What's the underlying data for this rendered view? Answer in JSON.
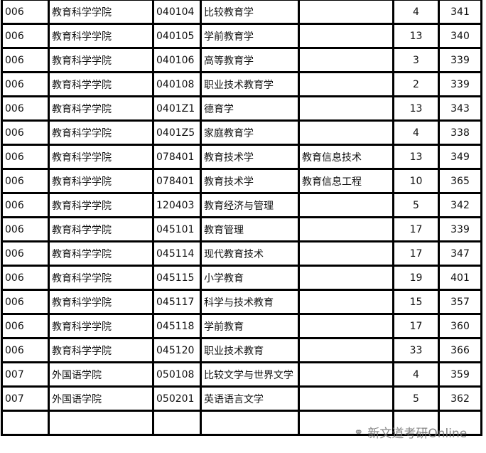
{
  "rows": [
    [
      "006",
      "教育科学学院",
      "040104",
      "比较教育学",
      "",
      "4",
      "341"
    ],
    [
      "006",
      "教育科学学院",
      "040105",
      "学前教育学",
      "",
      "13",
      "340"
    ],
    [
      "006",
      "教育科学学院",
      "040106",
      "高等教育学",
      "",
      "3",
      "339"
    ],
    [
      "006",
      "教育科学学院",
      "040108",
      "职业技术教育学",
      "",
      "2",
      "339"
    ],
    [
      "006",
      "教育科学学院",
      "0401Z1",
      "德育学",
      "",
      "13",
      "343"
    ],
    [
      "006",
      "教育科学学院",
      "0401Z5",
      "家庭教育学",
      "",
      "4",
      "338"
    ],
    [
      "006",
      "教育科学学院",
      "078401",
      "教育技术学",
      "教育信息技术",
      "13",
      "349"
    ],
    [
      "006",
      "教育科学学院",
      "078401",
      "教育技术学",
      "教育信息工程",
      "10",
      "365"
    ],
    [
      "006",
      "教育科学学院",
      "120403",
      "教育经济与管理",
      "",
      "5",
      "342"
    ],
    [
      "006",
      "教育科学学院",
      "045101",
      "教育管理",
      "",
      "17",
      "339"
    ],
    [
      "006",
      "教育科学学院",
      "045114",
      "现代教育技术",
      "",
      "17",
      "347"
    ],
    [
      "006",
      "教育科学学院",
      "045115",
      "小学教育",
      "",
      "19",
      "401"
    ],
    [
      "006",
      "教育科学学院",
      "045117",
      "科学与技术教育",
      "",
      "15",
      "357"
    ],
    [
      "006",
      "教育科学学院",
      "045118",
      "学前教育",
      "",
      "17",
      "360"
    ],
    [
      "006",
      "教育科学学院",
      "045120",
      "职业技术教育",
      "",
      "33",
      "366"
    ],
    [
      "007",
      "外国语学院",
      "050108",
      "比较文学与世界文学",
      "",
      "4",
      "359"
    ],
    [
      "007",
      "外国语学院",
      "050201",
      "英语语言文学",
      "",
      "5",
      "362"
    ],
    [
      "",
      "",
      "",
      "",
      "",
      "",
      ""
    ]
  ],
  "watermark": {
    "text": "新文道考研Online",
    "icon": "wechat-icon"
  }
}
